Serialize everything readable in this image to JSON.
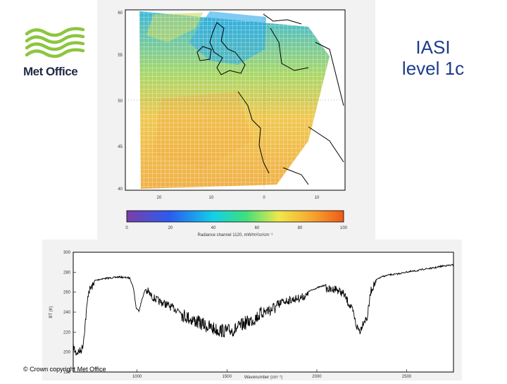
{
  "logo": {
    "text": "Met Office",
    "color": "#8cc63f"
  },
  "title": {
    "line1": "IASI",
    "line2": "level 1c"
  },
  "map": {
    "lat_ticks": [
      "60",
      "55",
      "50",
      "45",
      "40"
    ],
    "lon_ticks": [
      "20",
      "10",
      "0",
      "10"
    ],
    "colorbar_ticks": [
      "0",
      "20",
      "40",
      "60",
      "80",
      "100"
    ],
    "colorbar_label": "Radiance channel 1120, mW/m²/sr/cm⁻¹"
  },
  "chart_data": {
    "type": "line",
    "xlabel": "Wavenumber (cm⁻¹)",
    "ylabel": "BT (K)",
    "xlim": [
      645,
      2760
    ],
    "ylim": [
      180,
      300
    ],
    "x_ticks": [
      "1000",
      "1500",
      "2000",
      "2500"
    ],
    "y_ticks": [
      "300",
      "280",
      "260",
      "240",
      "220",
      "200",
      "180"
    ],
    "series": [
      {
        "x": [
          645,
          660,
          690,
          700,
          710,
          730,
          760,
          800,
          850,
          900,
          960,
          980,
          995,
          1010,
          1030,
          1045,
          1060,
          1080,
          1120,
          1160,
          1200,
          1260,
          1300,
          1350,
          1400,
          1450,
          1500,
          1550,
          1600,
          1650,
          1700,
          1750,
          1800,
          1850,
          1900,
          1950,
          2000,
          2050,
          2080,
          2100,
          2150,
          2200,
          2220,
          2240,
          2260,
          2280,
          2300,
          2320,
          2360,
          2400,
          2450,
          2500,
          2550,
          2600,
          2650,
          2700,
          2760
        ],
        "y": [
          210,
          203,
          206,
          212,
          230,
          265,
          272,
          274,
          275,
          276,
          275,
          265,
          245,
          242,
          255,
          263,
          265,
          260,
          255,
          252,
          248,
          244,
          240,
          236,
          232,
          229,
          228,
          230,
          236,
          240,
          247,
          250,
          254,
          256,
          258,
          261,
          265,
          268,
          266,
          268,
          262,
          245,
          230,
          225,
          235,
          238,
          265,
          272,
          276,
          278,
          279,
          281,
          282,
          284,
          285,
          287,
          288
        ]
      }
    ]
  },
  "copyright": "© Crown copyright   Met Office"
}
